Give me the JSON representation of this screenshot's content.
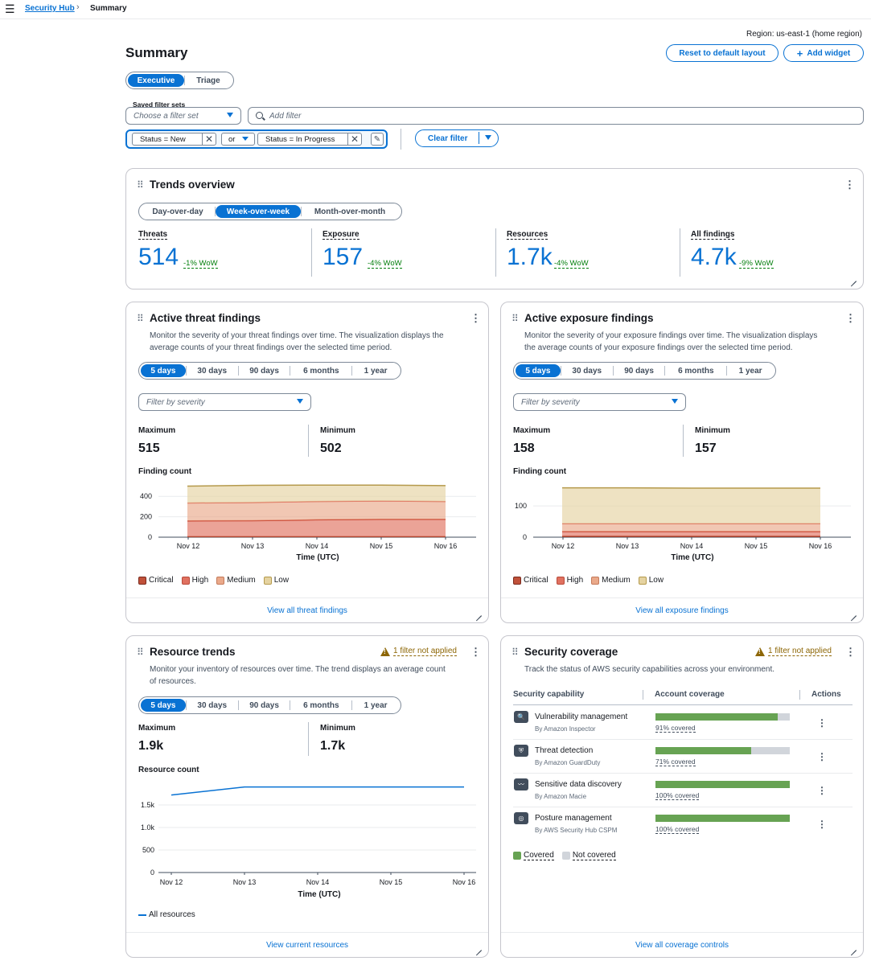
{
  "breadcrumb": {
    "root": "Security Hub",
    "current": "Summary"
  },
  "region": "Region: us-east-1 (home region)",
  "page_title": "Summary",
  "header_buttons": {
    "reset": "Reset to default layout",
    "add_widget": "Add widget"
  },
  "view_tabs": [
    "Executive",
    "Triage"
  ],
  "filters": {
    "saved_label": "Saved filter sets",
    "saved_placeholder": "Choose a filter set",
    "add_placeholder": "Add filter",
    "token1": "Status = New",
    "operator": "or",
    "token2": "Status = In Progress",
    "clear": "Clear filter"
  },
  "trends": {
    "title": "Trends overview",
    "periods": [
      "Day-over-day",
      "Week-over-week",
      "Month-over-month"
    ],
    "metrics": [
      {
        "label": "Threats",
        "value": "514",
        "change": "-1% WoW"
      },
      {
        "label": "Exposure",
        "value": "157",
        "change": "-4% WoW"
      },
      {
        "label": "Resources",
        "value": "1.7k",
        "change": "-4% WoW"
      },
      {
        "label": "All findings",
        "value": "4.7k",
        "change": "-9% WoW"
      }
    ]
  },
  "ranges": [
    "5 days",
    "30 days",
    "90 days",
    "6 months",
    "1 year"
  ],
  "threat_card": {
    "title": "Active threat findings",
    "desc1": "Monitor the severity of your threat findings over time. The visualization displays the",
    "desc2": "average counts of your threat findings over the selected time period.",
    "filter_placeholder": "Filter by severity",
    "max_label": "Maximum",
    "max_value": "515",
    "min_label": "Minimum",
    "min_value": "502",
    "chart_label": "Finding count",
    "footer": "View all threat findings"
  },
  "exposure_card": {
    "title": "Active exposure findings",
    "desc1": "Monitor the severity of your exposure findings over time. The visualization displays",
    "desc2": "the average counts of your exposure findings over the selected time period.",
    "filter_placeholder": "Filter by severity",
    "max_label": "Maximum",
    "max_value": "158",
    "min_label": "Minimum",
    "min_value": "157",
    "chart_label": "Finding count",
    "footer": "View all exposure findings"
  },
  "resource_card": {
    "title": "Resource trends",
    "warning": "1 filter not applied",
    "desc1": "Monitor your inventory of resources over time. The trend displays an average count",
    "desc2": "of resources.",
    "max_label": "Maximum",
    "max_value": "1.9k",
    "min_label": "Minimum",
    "min_value": "1.7k",
    "chart_label": "Resource count",
    "footer": "View current resources"
  },
  "coverage_card": {
    "title": "Security coverage",
    "warning": "1 filter not applied",
    "desc": "Track the status of AWS security capabilities across your environment.",
    "col_capability": "Security capability",
    "col_coverage": "Account coverage",
    "col_actions": "Actions",
    "rows": [
      {
        "name": "Vulnerability management",
        "by": "By Amazon Inspector",
        "covered": 0.91,
        "pct": "91% covered",
        "icon": "inspector-icon"
      },
      {
        "name": "Threat detection",
        "by": "By Amazon GuardDuty",
        "covered": 0.71,
        "pct": "71% covered",
        "icon": "guardduty-icon"
      },
      {
        "name": "Sensitive data discovery",
        "by": "By Amazon Macie",
        "covered": 1.0,
        "pct": "100% covered",
        "icon": "macie-icon"
      },
      {
        "name": "Posture management",
        "by": "By AWS Security Hub CSPM",
        "covered": 1.0,
        "pct": "100% covered",
        "icon": "cspm-icon"
      }
    ],
    "legend_covered": "Covered",
    "legend_not": "Not covered",
    "footer": "View all coverage controls"
  },
  "colors": {
    "accent": "#0972d3",
    "critical": "#c0513a",
    "high": "#e07160",
    "medium": "#eaa98a",
    "low": "#e5d3a1",
    "covered": "#67a353",
    "not_covered": "#d1d5db",
    "line": "#0972d3"
  },
  "chart_data": [
    {
      "type": "area",
      "title": "Finding count",
      "xlabel": "Time (UTC)",
      "categories": [
        "Nov 12",
        "Nov 13",
        "Nov 14",
        "Nov 15",
        "Nov 16"
      ],
      "yticks": [
        0,
        200,
        400
      ],
      "ylim": [
        0,
        520
      ],
      "stacked": true,
      "series": [
        {
          "name": "Critical",
          "values": [
            5,
            5,
            5,
            5,
            5
          ]
        },
        {
          "name": "High",
          "values": [
            155,
            157,
            165,
            170,
            170
          ]
        },
        {
          "name": "Medium",
          "values": [
            175,
            178,
            180,
            180,
            175
          ]
        },
        {
          "name": "Low",
          "values": [
            165,
            168,
            160,
            155,
            155
          ]
        }
      ],
      "legend": [
        "Critical",
        "High",
        "Medium",
        "Low"
      ]
    },
    {
      "type": "area",
      "title": "Finding count",
      "xlabel": "Time (UTC)",
      "categories": [
        "Nov 12",
        "Nov 13",
        "Nov 14",
        "Nov 15",
        "Nov 16"
      ],
      "yticks": [
        0,
        100
      ],
      "ylim": [
        0,
        170
      ],
      "stacked": true,
      "series": [
        {
          "name": "Critical",
          "values": [
            3,
            3,
            3,
            3,
            3
          ]
        },
        {
          "name": "High",
          "values": [
            15,
            15,
            15,
            15,
            15
          ]
        },
        {
          "name": "Medium",
          "values": [
            25,
            25,
            25,
            25,
            25
          ]
        },
        {
          "name": "Low",
          "values": [
            115,
            115,
            114,
            114,
            114
          ]
        }
      ],
      "legend": [
        "Critical",
        "High",
        "Medium",
        "Low"
      ]
    },
    {
      "type": "line",
      "title": "Resource count",
      "xlabel": "Time (UTC)",
      "categories": [
        "Nov 12",
        "Nov 13",
        "Nov 14",
        "Nov 15",
        "Nov 16"
      ],
      "yticks": [
        0,
        500,
        "1.0k",
        "1.5k"
      ],
      "ytick_values": [
        0,
        500,
        1000,
        1500
      ],
      "ylim": [
        0,
        2000
      ],
      "series": [
        {
          "name": "All resources",
          "values": [
            1720,
            1900,
            1900,
            1900,
            1900
          ]
        }
      ],
      "legend": [
        "All resources"
      ]
    }
  ]
}
